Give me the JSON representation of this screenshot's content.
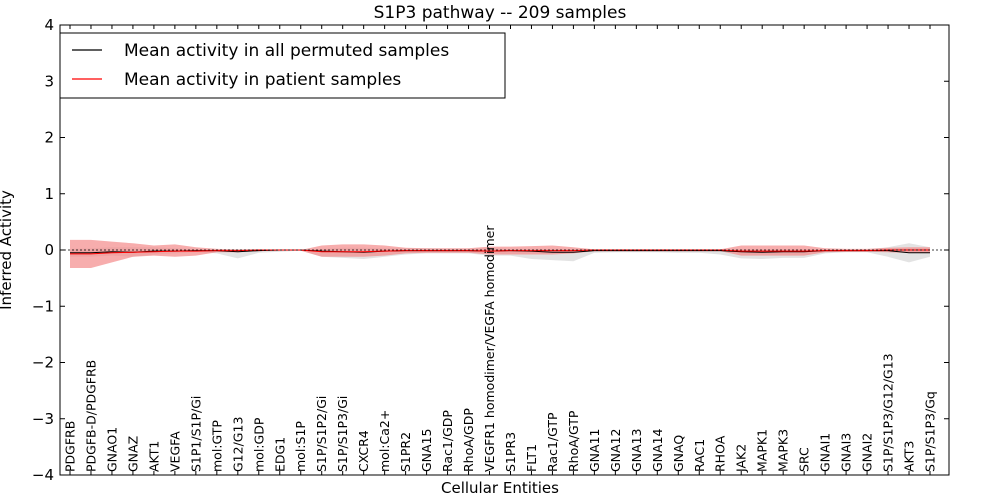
{
  "chart_data": {
    "type": "line",
    "title": "S1P3 pathway -- 209 samples",
    "xlabel": "Cellular Entities",
    "ylabel": "Inferred Activity",
    "ylim": [
      -4,
      4
    ],
    "yticks": [
      4,
      3,
      2,
      1,
      0,
      -1,
      -2,
      -3,
      -4
    ],
    "ytick_labels": [
      "4",
      "3",
      "2",
      "1",
      "0",
      "−1",
      "−2",
      "−3",
      "−4"
    ],
    "grid": false,
    "legend": {
      "position": "top-left",
      "entries": [
        {
          "label": "Mean activity in all permuted samples",
          "color": "#000000"
        },
        {
          "label": "Mean activity in patient samples",
          "color": "#ff0000"
        }
      ]
    },
    "categories": [
      "PDGFRB",
      "PDGFB-D/PDGFRB",
      "GNAO1",
      "GNAZ",
      "AKT1",
      "VEGFA",
      "S1P1/S1P/Gi",
      "mol:GTP",
      "G12/G13",
      "mol:GDP",
      "EDG1",
      "mol:S1P",
      "S1P/S1P2/Gi",
      "S1P/S1P3/Gi",
      "CXCR4",
      "mol:Ca2+",
      "S1PR2",
      "GNA15",
      "Rac1/GDP",
      "RhoA/GDP",
      "VEGFR1 homodimer/VEGFA homodimer",
      "S1PR3",
      "FLT1",
      "Rac1/GTP",
      "RhoA/GTP",
      "GNA11",
      "GNA12",
      "GNA13",
      "GNA14",
      "GNAQ",
      "RAC1",
      "RHOA",
      "JAK2",
      "MAPK1",
      "MAPK3",
      "SRC",
      "GNAI1",
      "GNAI3",
      "GNAI2",
      "S1P/S1P3/G12/G13",
      "AKT3",
      "S1P/S1P3/Gq"
    ],
    "series": [
      {
        "name": "Mean activity in all permuted samples",
        "color": "#000000",
        "values": [
          -0.05,
          -0.05,
          -0.03,
          -0.04,
          -0.02,
          -0.02,
          -0.01,
          -0.01,
          -0.03,
          -0.01,
          0,
          0,
          -0.02,
          -0.03,
          -0.04,
          -0.02,
          -0.01,
          -0.01,
          -0.01,
          -0.01,
          -0.02,
          -0.01,
          -0.02,
          -0.04,
          -0.04,
          -0.01,
          -0.01,
          -0.01,
          -0.01,
          -0.01,
          -0.01,
          -0.01,
          -0.03,
          -0.04,
          -0.03,
          -0.03,
          -0.01,
          -0.01,
          -0.01,
          -0.01,
          -0.05,
          -0.05
        ],
        "band_upper": [
          0.02,
          0.03,
          0.05,
          0.05,
          0.05,
          0.03,
          0.02,
          0.01,
          0.01,
          0.01,
          0,
          0,
          0.02,
          0.04,
          0.04,
          0.03,
          0.03,
          0.03,
          0.02,
          0.02,
          0.03,
          0.02,
          0.02,
          0.02,
          0.02,
          0.01,
          0.01,
          0.01,
          0.01,
          0.01,
          0.01,
          0.01,
          0.01,
          0.01,
          0.01,
          0.01,
          0.01,
          0.01,
          0.01,
          0.05,
          0.12,
          0.05
        ],
        "band_lower": [
          -0.12,
          -0.12,
          -0.1,
          -0.12,
          -0.08,
          -0.06,
          -0.04,
          -0.06,
          -0.15,
          -0.05,
          -0.03,
          -0.01,
          -0.12,
          -0.14,
          -0.16,
          -0.12,
          -0.08,
          -0.06,
          -0.06,
          -0.06,
          -0.1,
          -0.1,
          -0.16,
          -0.18,
          -0.2,
          -0.05,
          -0.04,
          -0.04,
          -0.04,
          -0.05,
          -0.05,
          -0.08,
          -0.15,
          -0.16,
          -0.14,
          -0.14,
          -0.06,
          -0.04,
          -0.04,
          -0.12,
          -0.22,
          -0.12
        ]
      },
      {
        "name": "Mean activity in patient samples",
        "color": "#ff0000",
        "values": [
          -0.07,
          -0.07,
          -0.05,
          -0.04,
          -0.03,
          -0.02,
          -0.02,
          -0.01,
          -0.01,
          0,
          0,
          0,
          -0.03,
          -0.03,
          -0.03,
          -0.02,
          -0.01,
          -0.01,
          -0.01,
          -0.01,
          -0.02,
          -0.01,
          -0.01,
          -0.01,
          -0.01,
          0,
          0,
          0,
          0,
          0,
          0,
          0,
          -0.02,
          -0.02,
          -0.02,
          -0.02,
          -0.01,
          -0.01,
          -0.01,
          0,
          0,
          0
        ],
        "band_upper": [
          0.18,
          0.18,
          0.15,
          0.12,
          0.08,
          0.1,
          0.05,
          0.02,
          0.01,
          0.01,
          0,
          0,
          0.08,
          0.1,
          0.1,
          0.08,
          0.04,
          0.03,
          0.03,
          0.03,
          0.06,
          0.06,
          0.07,
          0.08,
          0.05,
          0.01,
          0.01,
          0.01,
          0.01,
          0.01,
          0.01,
          0.01,
          0.08,
          0.08,
          0.08,
          0.08,
          0.03,
          0.02,
          0.02,
          0.04,
          0.05,
          0.05
        ],
        "band_lower": [
          -0.32,
          -0.32,
          -0.22,
          -0.12,
          -0.1,
          -0.12,
          -0.1,
          -0.04,
          -0.04,
          -0.02,
          -0.01,
          -0.01,
          -0.12,
          -0.12,
          -0.12,
          -0.1,
          -0.06,
          -0.05,
          -0.05,
          -0.05,
          -0.08,
          -0.08,
          -0.08,
          -0.08,
          -0.06,
          -0.02,
          -0.02,
          -0.02,
          -0.02,
          -0.02,
          -0.02,
          -0.02,
          -0.1,
          -0.1,
          -0.1,
          -0.1,
          -0.04,
          -0.03,
          -0.03,
          -0.04,
          -0.05,
          -0.05
        ]
      }
    ]
  }
}
